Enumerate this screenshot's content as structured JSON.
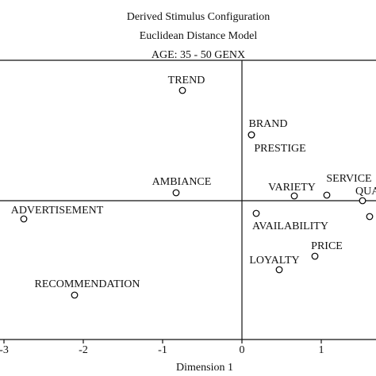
{
  "chart_data": {
    "type": "scatter",
    "title": "Derived Stimulus Configuration",
    "subtitle": "Euclidean Distance Model",
    "annotation": "AGE: 35 - 50 GENX",
    "x_label": "Dimension 1",
    "labels": [
      "TREND",
      "BRAND",
      "PRESTIGE",
      "AMBIANCE",
      "VARIETY",
      "SERVICE",
      "QUALITY",
      null,
      "ADVERTISEMENT",
      "AVAILABILITY",
      "PRICE",
      "LOYALTY",
      "RECOMMENDATION"
    ],
    "x": [
      -0.75,
      0.12,
      0.12,
      -0.83,
      0.66,
      1.07,
      1.52,
      1.61,
      -2.75,
      0.18,
      0.92,
      0.47,
      -2.11
    ],
    "values": [
      1.39,
      0.83,
      0.83,
      0.1,
      0.06,
      0.07,
      0.0,
      -0.2,
      -0.23,
      -0.16,
      -0.7,
      -0.87,
      -1.19
    ],
    "xlim": [
      -3.05,
      1.69
    ],
    "ylim": [
      -1.75,
      1.77
    ],
    "xticks": [
      -3,
      -2,
      -1,
      0,
      1
    ],
    "color": "#000000"
  }
}
